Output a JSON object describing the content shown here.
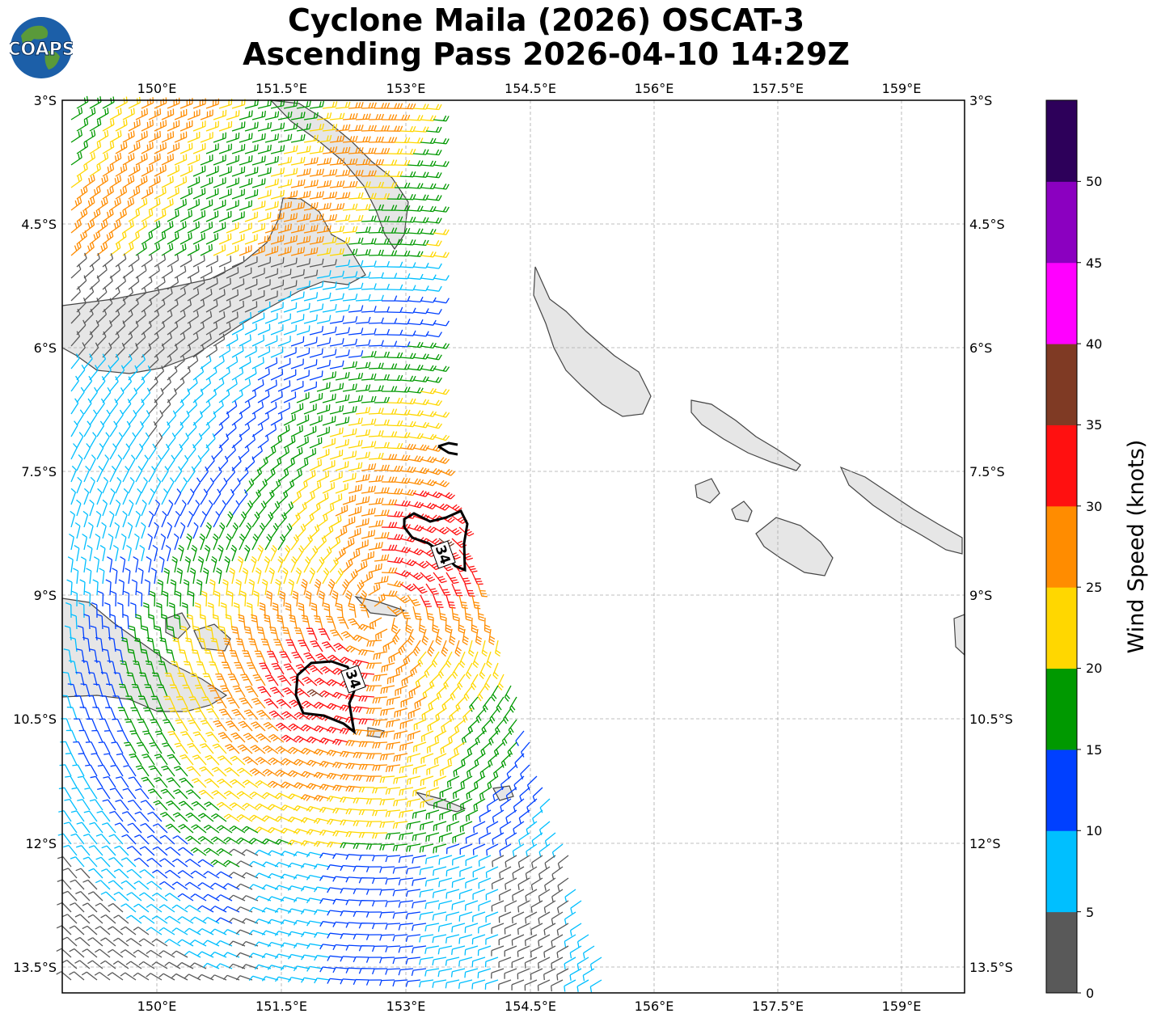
{
  "title": {
    "line1": "Cyclone Maila (2026) OSCAT-3",
    "line2": "Ascending Pass 2026-04-10 14:29Z"
  },
  "logo": {
    "text": "COAPS",
    "icon": "globe-logo"
  },
  "map": {
    "lon_labels": [
      "150°E",
      "151.5°E",
      "153°E",
      "154.5°E",
      "156°E",
      "157.5°E",
      "159°E"
    ],
    "lat_labels": [
      "3°S",
      "4.5°S",
      "6°S",
      "7.5°S",
      "9°S",
      "10.5°S",
      "12°S",
      "13.5°S"
    ],
    "contour_label": "34",
    "gridlines": true,
    "land_color": "#e8e8e8",
    "coast_color": "#444444"
  },
  "colorbar": {
    "label": "Wind Speed (knots)",
    "tick_labels": [
      "0",
      "5",
      "10",
      "15",
      "20",
      "25",
      "30",
      "35",
      "40",
      "45",
      "50"
    ],
    "bins": [
      {
        "from": 0,
        "to": 5,
        "color": "#595959"
      },
      {
        "from": 5,
        "to": 10,
        "color": "#00bfff"
      },
      {
        "from": 10,
        "to": 15,
        "color": "#0040ff"
      },
      {
        "from": 15,
        "to": 20,
        "color": "#009900"
      },
      {
        "from": 20,
        "to": 25,
        "color": "#ffd700"
      },
      {
        "from": 25,
        "to": 30,
        "color": "#ff8c00"
      },
      {
        "from": 30,
        "to": 35,
        "color": "#ff1010"
      },
      {
        "from": 35,
        "to": 40,
        "color": "#7f3a24"
      },
      {
        "from": 40,
        "to": 45,
        "color": "#ff00ff"
      },
      {
        "from": 45,
        "to": 50,
        "color": "#8b00c0"
      },
      {
        "from": 50,
        "to": 55,
        "color": "#2d005a"
      }
    ]
  }
}
